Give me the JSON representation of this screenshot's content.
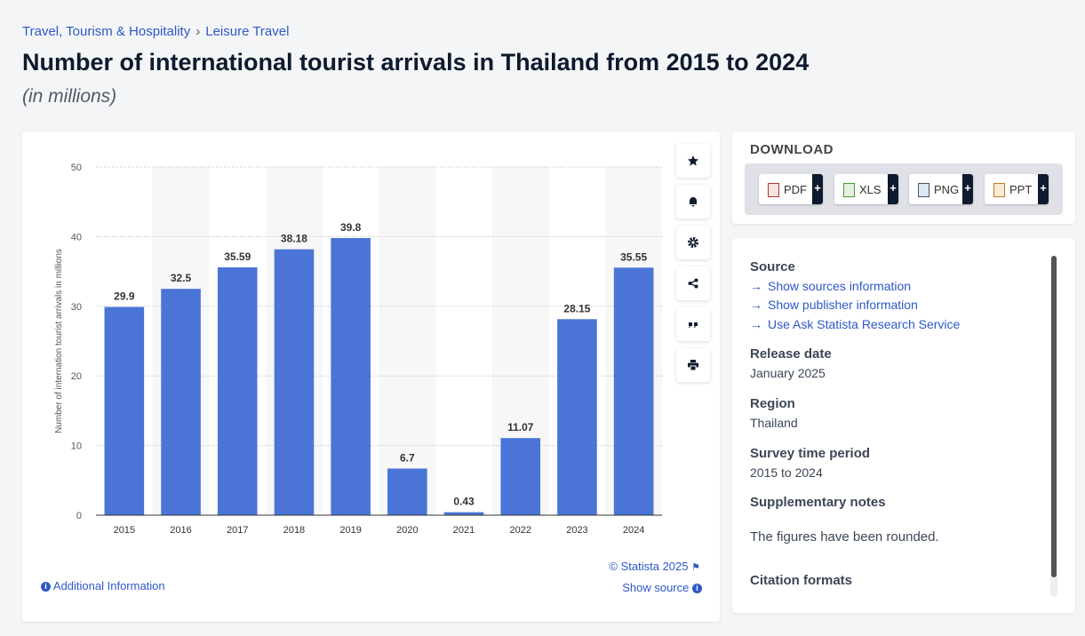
{
  "breadcrumb": [
    "Travel, Tourism & Hospitality",
    "Leisure Travel"
  ],
  "title": "Number of international tourist arrivals in Thailand from 2015 to 2024",
  "subtitle": "(in millions)",
  "chart_data": {
    "type": "bar",
    "y_label": "Number of internation tourist arrivals in millions",
    "categories": [
      "2015",
      "2016",
      "2017",
      "2018",
      "2019",
      "2020",
      "2021",
      "2022",
      "2023",
      "2024"
    ],
    "values": [
      29.9,
      32.5,
      35.59,
      38.18,
      39.8,
      6.7,
      0.43,
      11.07,
      28.15,
      35.55
    ],
    "color": "#4a74d6",
    "ylim": [
      0,
      50
    ],
    "yticks": [
      0,
      10,
      20,
      30,
      40,
      50
    ],
    "grid": true
  },
  "chart_footer": {
    "copyright": "© Statista 2025",
    "show_source": "Show source",
    "additional_info": "Additional Information"
  },
  "download": {
    "heading": "DOWNLOAD",
    "formats": [
      "PDF",
      "XLS",
      "PNG",
      "PPT"
    ],
    "add": "+"
  },
  "details": {
    "source_heading": "Source",
    "source_links": [
      "Show sources information",
      "Show publisher information",
      "Use Ask Statista Research Service"
    ],
    "release_date_heading": "Release date",
    "release_date": "January 2025",
    "region_heading": "Region",
    "region": "Thailand",
    "survey_period_heading": "Survey time period",
    "survey_period": "2015 to 2024",
    "notes_heading": "Supplementary notes",
    "notes": "The figures have been rounded.",
    "citation_heading": "Citation formats"
  }
}
